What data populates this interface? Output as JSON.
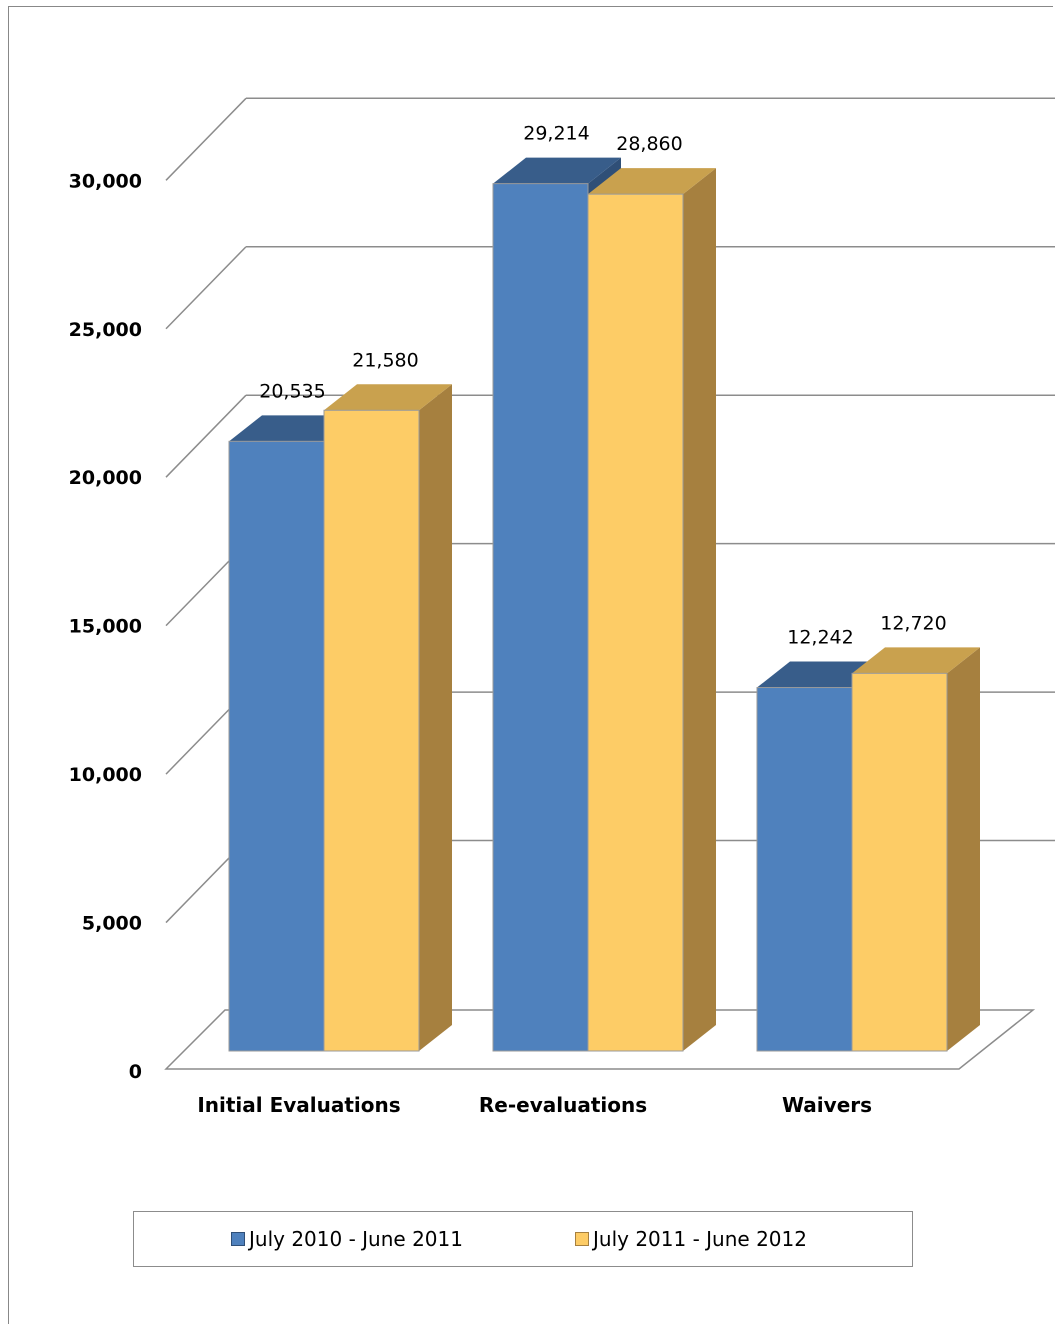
{
  "chart_data": {
    "type": "bar",
    "three_d": true,
    "title": "",
    "xlabel": "",
    "ylabel": "",
    "categories": [
      "Initial Evaluations",
      "Re-evaluations",
      "Waivers"
    ],
    "series": [
      {
        "name": "July 2010 - June 2011",
        "values": [
          20535,
          29214,
          12242
        ],
        "labels": [
          "20,535",
          "29,214",
          "12,242"
        ],
        "color": "#4f81bd",
        "top_color": "#385d8a",
        "side_color": "#2f4f77"
      },
      {
        "name": "July 2011 - June 2012",
        "values": [
          21580,
          28860,
          12720
        ],
        "labels": [
          "21,580",
          "28,860",
          "12,720"
        ],
        "color": "#fdcc66",
        "top_color": "#c9a14e",
        "side_color": "#a6803f"
      }
    ],
    "ylim": [
      0,
      30000
    ],
    "yticks": [
      0,
      5000,
      10000,
      15000,
      20000,
      25000,
      30000
    ],
    "ytick_labels": [
      "0",
      "5,000",
      "10,000",
      "15,000",
      "20,000",
      "25,000",
      "30,000"
    ],
    "grid": true,
    "legend": "bottom"
  }
}
